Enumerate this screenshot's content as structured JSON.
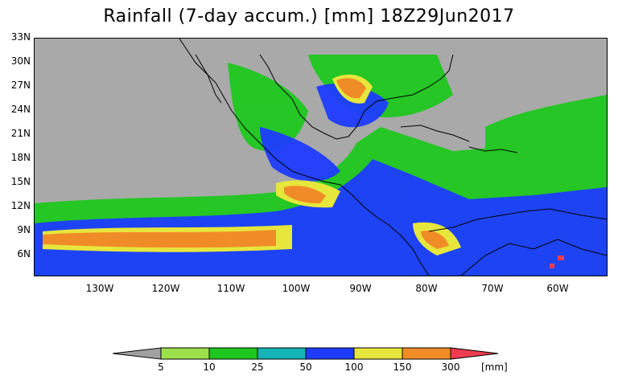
{
  "title": "Rainfall (7-day accum.) [mm] 18Z29Jun2017",
  "map": {
    "lat_labels": [
      "33N",
      "30N",
      "27N",
      "24N",
      "21N",
      "18N",
      "15N",
      "12N",
      "9N",
      "6N"
    ],
    "lon_labels": [
      "130W",
      "120W",
      "110W",
      "100W",
      "90W",
      "80W",
      "70W",
      "60W"
    ],
    "land_color": "#a9a9a9",
    "coastline_color": "#000000"
  },
  "legend": {
    "thresholds": [
      "5",
      "10",
      "25",
      "50",
      "100",
      "150",
      "300"
    ],
    "unit": "[mm]",
    "colors": [
      "#a0a0a0",
      "#9ce14b",
      "#1ec81e",
      "#14b4b4",
      "#1e3cff",
      "#e6e63c",
      "#f08c28",
      "#f03c50"
    ]
  }
}
